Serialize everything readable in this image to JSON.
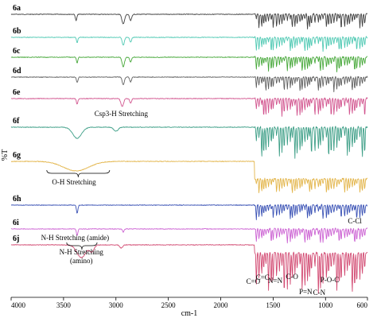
{
  "chart_data": {
    "type": "line",
    "title": "",
    "xlabel": "cm-1",
    "ylabel": "%T",
    "xlim": [
      4000,
      600
    ],
    "x_reversed": true,
    "x_ticks": [
      4000,
      3500,
      3000,
      2500,
      2000,
      1500,
      1000,
      600
    ],
    "series": [
      {
        "name": "6a",
        "color": "#404040"
      },
      {
        "name": "6b",
        "color": "#4fc9b3"
      },
      {
        "name": "6c",
        "color": "#47a83a"
      },
      {
        "name": "6d",
        "color": "#606060"
      },
      {
        "name": "6e",
        "color": "#d2558f"
      },
      {
        "name": "6f",
        "color": "#3c9e86"
      },
      {
        "name": "6g",
        "color": "#e3b54a"
      },
      {
        "name": "6h",
        "color": "#3a52b5"
      },
      {
        "name": "6i",
        "color": "#cc62d3"
      },
      {
        "name": "6j",
        "color": "#d24a72"
      }
    ],
    "annotations": [
      {
        "text": "Csp3-H Stretching",
        "x": 2950
      },
      {
        "text": "O-H Stretching",
        "x": 3400
      },
      {
        "text": "C-Cl",
        "x": 720
      },
      {
        "text": "N-H Stretching (amide)",
        "x": 3390
      },
      {
        "text": "N-H Stretching",
        "x": 3330
      },
      {
        "text": "(amino)",
        "x": 3330
      },
      {
        "text": "C=O",
        "x": 1690
      },
      {
        "text": "C=C",
        "x": 1600
      },
      {
        "text": "N=N",
        "x": 1480
      },
      {
        "text": "C-O",
        "x": 1320
      },
      {
        "text": "P=N",
        "x": 1190
      },
      {
        "text": "C-N",
        "x": 1060
      },
      {
        "text": "P-O-C",
        "x": 960
      }
    ]
  }
}
